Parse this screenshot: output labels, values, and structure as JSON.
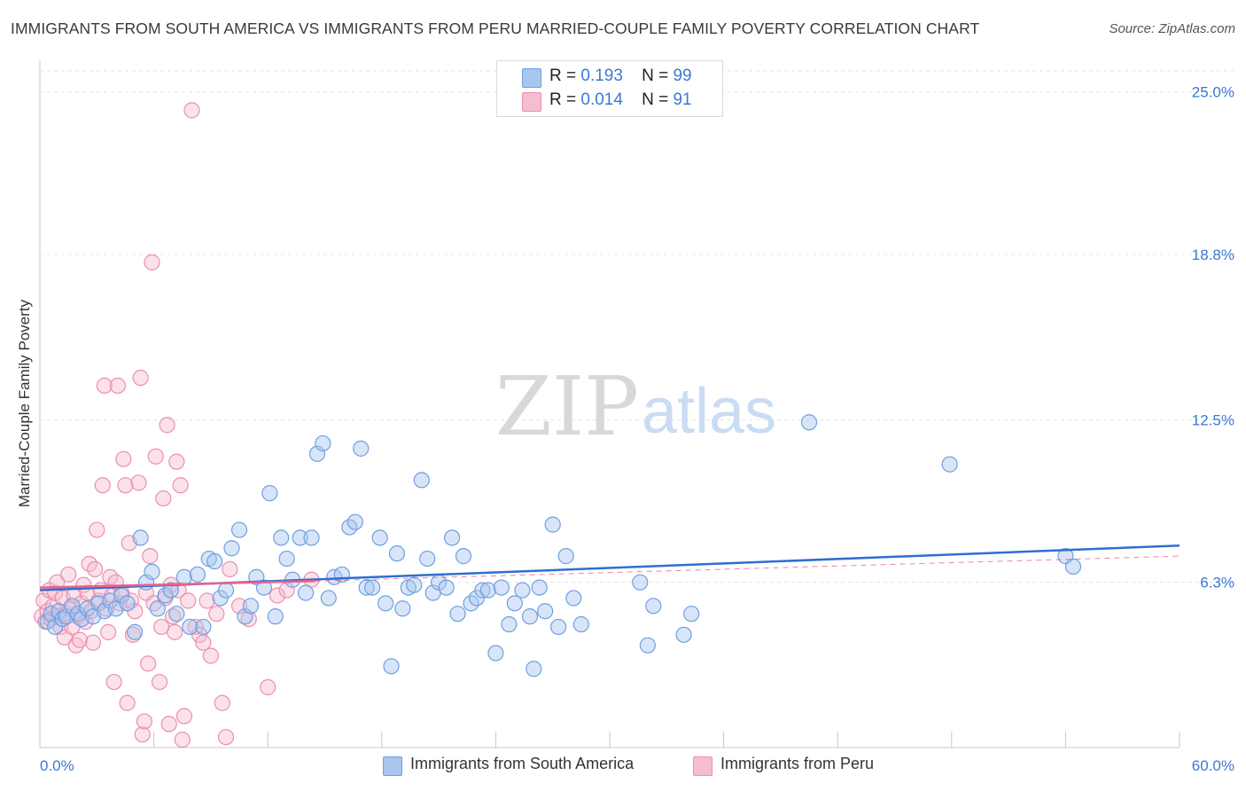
{
  "header": {
    "title": "IMMIGRANTS FROM SOUTH AMERICA VS IMMIGRANTS FROM PERU MARRIED-COUPLE FAMILY POVERTY CORRELATION CHART",
    "source": "Source: ZipAtlas.com"
  },
  "watermark": {
    "zip": "ZIP",
    "atlas": "atlas"
  },
  "legend": {
    "rows": [
      {
        "r_label": "R =",
        "r_value": "0.193",
        "n_label": "N =",
        "n_value": "99"
      },
      {
        "r_label": "R =",
        "r_value": "0.014",
        "n_label": "N =",
        "n_value": "91"
      }
    ]
  },
  "bottom_legend": {
    "south_america": "Immigrants from South America",
    "peru": "Immigrants from Peru"
  },
  "chart_data": {
    "type": "scatter",
    "title": "IMMIGRANTS FROM SOUTH AMERICA VS IMMIGRANTS FROM PERU MARRIED-COUPLE FAMILY POVERTY CORRELATION CHART",
    "xlabel": "",
    "ylabel": "Married-Couple Family Poverty",
    "xlim": [
      0,
      60
    ],
    "ylim": [
      0,
      25.8
    ],
    "x_tick_labels": [
      "0.0%",
      "60.0%"
    ],
    "y_ticks": [
      6.3,
      12.5,
      18.8,
      25.0
    ],
    "y_tick_labels": [
      "6.3%",
      "12.5%",
      "18.8%",
      "25.0%"
    ],
    "colors": {
      "south_america_fill": "#a9c6ef",
      "south_america_stroke": "#6f9fe0",
      "south_america_line": "#2f6fd0",
      "peru_fill": "#f6bdd0",
      "peru_stroke": "#ea8fb0",
      "peru_line": "#e8628f",
      "axis_label": "#3b78d4",
      "grid": "#e3e3e3"
    },
    "series": [
      {
        "name": "Immigrants from South America",
        "R": 0.193,
        "N": 99,
        "trend": {
          "x0": 0,
          "y0": 6.0,
          "x1": 60,
          "y1": 7.7
        },
        "points": [
          [
            0.4,
            4.8
          ],
          [
            0.6,
            5.1
          ],
          [
            0.8,
            4.6
          ],
          [
            1.0,
            5.2
          ],
          [
            1.2,
            4.9
          ],
          [
            1.4,
            5.0
          ],
          [
            1.7,
            5.4
          ],
          [
            2.0,
            5.1
          ],
          [
            2.2,
            4.9
          ],
          [
            2.5,
            5.3
          ],
          [
            2.8,
            5.0
          ],
          [
            3.1,
            5.5
          ],
          [
            3.4,
            5.2
          ],
          [
            3.7,
            5.6
          ],
          [
            4.0,
            5.3
          ],
          [
            4.3,
            5.8
          ],
          [
            4.6,
            5.5
          ],
          [
            5.0,
            4.4
          ],
          [
            5.3,
            8.0
          ],
          [
            5.6,
            6.3
          ],
          [
            5.9,
            6.7
          ],
          [
            6.2,
            5.3
          ],
          [
            6.6,
            5.8
          ],
          [
            6.9,
            6.0
          ],
          [
            7.2,
            5.1
          ],
          [
            7.6,
            6.5
          ],
          [
            7.9,
            4.6
          ],
          [
            8.3,
            6.6
          ],
          [
            8.6,
            4.6
          ],
          [
            8.9,
            7.2
          ],
          [
            9.2,
            7.1
          ],
          [
            9.5,
            5.7
          ],
          [
            9.8,
            6.0
          ],
          [
            10.1,
            7.6
          ],
          [
            10.5,
            8.3
          ],
          [
            10.8,
            5.0
          ],
          [
            11.1,
            5.4
          ],
          [
            11.4,
            6.5
          ],
          [
            11.8,
            6.1
          ],
          [
            12.1,
            9.7
          ],
          [
            12.4,
            5.0
          ],
          [
            12.7,
            8.0
          ],
          [
            13.0,
            7.2
          ],
          [
            13.3,
            6.4
          ],
          [
            13.7,
            8.0
          ],
          [
            14.0,
            5.9
          ],
          [
            14.3,
            8.0
          ],
          [
            14.6,
            11.2
          ],
          [
            14.9,
            11.6
          ],
          [
            15.2,
            5.7
          ],
          [
            15.5,
            6.5
          ],
          [
            15.9,
            6.6
          ],
          [
            16.3,
            8.4
          ],
          [
            16.6,
            8.6
          ],
          [
            16.9,
            11.4
          ],
          [
            17.2,
            6.1
          ],
          [
            17.5,
            6.1
          ],
          [
            17.9,
            8.0
          ],
          [
            18.2,
            5.5
          ],
          [
            18.5,
            3.1
          ],
          [
            18.8,
            7.4
          ],
          [
            19.1,
            5.3
          ],
          [
            19.4,
            6.1
          ],
          [
            19.7,
            6.2
          ],
          [
            20.1,
            10.2
          ],
          [
            20.4,
            7.2
          ],
          [
            20.7,
            5.9
          ],
          [
            21.0,
            6.3
          ],
          [
            21.4,
            6.1
          ],
          [
            21.7,
            8.0
          ],
          [
            22.0,
            5.1
          ],
          [
            22.3,
            7.3
          ],
          [
            22.7,
            5.5
          ],
          [
            23.0,
            5.7
          ],
          [
            23.3,
            6.0
          ],
          [
            23.6,
            6.0
          ],
          [
            24.0,
            3.6
          ],
          [
            24.3,
            6.1
          ],
          [
            24.7,
            4.7
          ],
          [
            25.0,
            5.5
          ],
          [
            25.4,
            6.0
          ],
          [
            25.8,
            5.0
          ],
          [
            26.0,
            3.0
          ],
          [
            26.3,
            6.1
          ],
          [
            26.6,
            5.2
          ],
          [
            27.0,
            8.5
          ],
          [
            27.3,
            4.6
          ],
          [
            27.7,
            7.3
          ],
          [
            28.1,
            5.7
          ],
          [
            28.5,
            4.7
          ],
          [
            31.6,
            6.3
          ],
          [
            32.0,
            3.9
          ],
          [
            32.3,
            5.4
          ],
          [
            33.9,
            4.3
          ],
          [
            34.3,
            5.1
          ],
          [
            40.5,
            12.4
          ],
          [
            47.9,
            10.8
          ],
          [
            54.0,
            7.3
          ],
          [
            54.4,
            6.9
          ]
        ]
      },
      {
        "name": "Immigrants from Peru",
        "R": 0.014,
        "N": 91,
        "trend": {
          "x0": 0,
          "y0": 6.1,
          "x1": 14.5,
          "y1": 6.35
        },
        "trend_dashed": {
          "x0": 14.5,
          "y0": 6.35,
          "x1": 60,
          "y1": 7.3
        },
        "points": [
          [
            0.1,
            5.0
          ],
          [
            0.2,
            5.6
          ],
          [
            0.3,
            4.8
          ],
          [
            0.4,
            5.2
          ],
          [
            0.5,
            6.0
          ],
          [
            0.6,
            4.9
          ],
          [
            0.7,
            5.4
          ],
          [
            0.8,
            5.9
          ],
          [
            0.9,
            6.3
          ],
          [
            1.0,
            5.0
          ],
          [
            1.1,
            4.6
          ],
          [
            1.2,
            5.7
          ],
          [
            1.3,
            4.2
          ],
          [
            1.4,
            5.1
          ],
          [
            1.5,
            6.6
          ],
          [
            1.6,
            5.3
          ],
          [
            1.7,
            4.6
          ],
          [
            1.8,
            5.8
          ],
          [
            1.9,
            3.9
          ],
          [
            2.0,
            5.0
          ],
          [
            2.1,
            4.1
          ],
          [
            2.2,
            5.5
          ],
          [
            2.3,
            6.2
          ],
          [
            2.4,
            4.8
          ],
          [
            2.5,
            5.9
          ],
          [
            2.6,
            7.0
          ],
          [
            2.7,
            5.2
          ],
          [
            2.8,
            4.0
          ],
          [
            2.9,
            6.8
          ],
          [
            3.0,
            8.3
          ],
          [
            3.1,
            5.6
          ],
          [
            3.2,
            6.0
          ],
          [
            3.3,
            10.0
          ],
          [
            3.4,
            13.8
          ],
          [
            3.5,
            5.3
          ],
          [
            3.6,
            4.4
          ],
          [
            3.7,
            6.5
          ],
          [
            3.8,
            5.8
          ],
          [
            3.9,
            2.5
          ],
          [
            4.0,
            6.3
          ],
          [
            4.1,
            13.8
          ],
          [
            4.2,
            5.5
          ],
          [
            4.3,
            5.9
          ],
          [
            4.4,
            11.0
          ],
          [
            4.5,
            10.0
          ],
          [
            4.6,
            1.7
          ],
          [
            4.7,
            7.8
          ],
          [
            4.8,
            5.6
          ],
          [
            4.9,
            4.3
          ],
          [
            5.0,
            5.2
          ],
          [
            5.2,
            10.1
          ],
          [
            5.3,
            14.1
          ],
          [
            5.4,
            0.5
          ],
          [
            5.5,
            1.0
          ],
          [
            5.6,
            5.9
          ],
          [
            5.7,
            3.2
          ],
          [
            5.8,
            7.3
          ],
          [
            5.9,
            18.5
          ],
          [
            6.0,
            5.5
          ],
          [
            6.1,
            11.1
          ],
          [
            6.3,
            2.5
          ],
          [
            6.4,
            4.6
          ],
          [
            6.5,
            9.5
          ],
          [
            6.6,
            5.7
          ],
          [
            6.7,
            12.3
          ],
          [
            6.8,
            0.9
          ],
          [
            6.9,
            6.2
          ],
          [
            7.0,
            5.0
          ],
          [
            7.1,
            4.4
          ],
          [
            7.2,
            10.9
          ],
          [
            7.3,
            6.0
          ],
          [
            7.4,
            10.0
          ],
          [
            7.5,
            0.3
          ],
          [
            7.6,
            1.2
          ],
          [
            7.8,
            5.6
          ],
          [
            8.0,
            24.3
          ],
          [
            8.2,
            4.6
          ],
          [
            8.4,
            4.3
          ],
          [
            8.6,
            4.0
          ],
          [
            8.8,
            5.6
          ],
          [
            9.0,
            3.5
          ],
          [
            9.3,
            5.1
          ],
          [
            9.6,
            1.7
          ],
          [
            9.8,
            0.4
          ],
          [
            10.0,
            6.8
          ],
          [
            10.5,
            5.4
          ],
          [
            11.0,
            4.9
          ],
          [
            12.0,
            2.3
          ],
          [
            12.5,
            5.8
          ],
          [
            13.0,
            6.0
          ],
          [
            14.3,
            6.4
          ]
        ]
      }
    ]
  }
}
